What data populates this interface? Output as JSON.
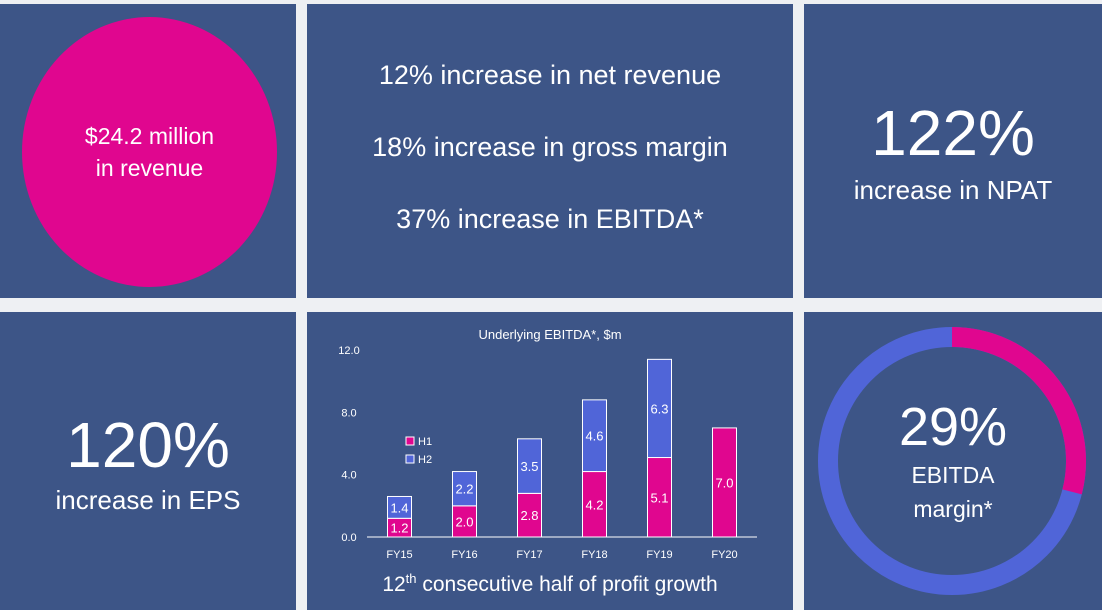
{
  "revenue": {
    "line1": "$24.2 million",
    "line2": "in revenue"
  },
  "stats": [
    "12% increase in net revenue",
    "18% increase in gross margin",
    "37% increase in EBITDA*"
  ],
  "npat": {
    "value": "122%",
    "label": "increase in NPAT"
  },
  "eps": {
    "value": "120%",
    "label": "increase in EPS"
  },
  "ebitda_margin": {
    "value": "29%",
    "label1": "EBITDA",
    "label2": "margin*",
    "fraction": 0.29
  },
  "caption": {
    "num": "12",
    "sup": "th",
    "rest": " consecutive half of profit growth"
  },
  "colors": {
    "tile": "#3d5587",
    "magenta": "#e0068f",
    "blue": "#5065d8",
    "background": "#eef0f3"
  },
  "chart_data": {
    "type": "bar",
    "stacked": true,
    "title": "Underlying EBITDA*, $m",
    "categories": [
      "FY15",
      "FY16",
      "FY17",
      "FY18",
      "FY19",
      "FY20"
    ],
    "series": [
      {
        "name": "H1",
        "values": [
          1.2,
          2.0,
          2.8,
          4.2,
          5.1,
          7.0
        ],
        "labels": [
          "1.2",
          "2.0",
          "2.8",
          "4.2",
          "5.1",
          "7.0"
        ]
      },
      {
        "name": "H2",
        "values": [
          1.4,
          2.2,
          3.5,
          4.6,
          6.3,
          null
        ],
        "labels": [
          "1.4",
          "2.2",
          "3.5",
          "4.6",
          "6.3",
          ""
        ]
      }
    ],
    "yticks": [
      "0.0",
      "4.0",
      "8.0",
      "12.0"
    ],
    "ylim": [
      0,
      12
    ],
    "legend": "left",
    "grid": false
  }
}
